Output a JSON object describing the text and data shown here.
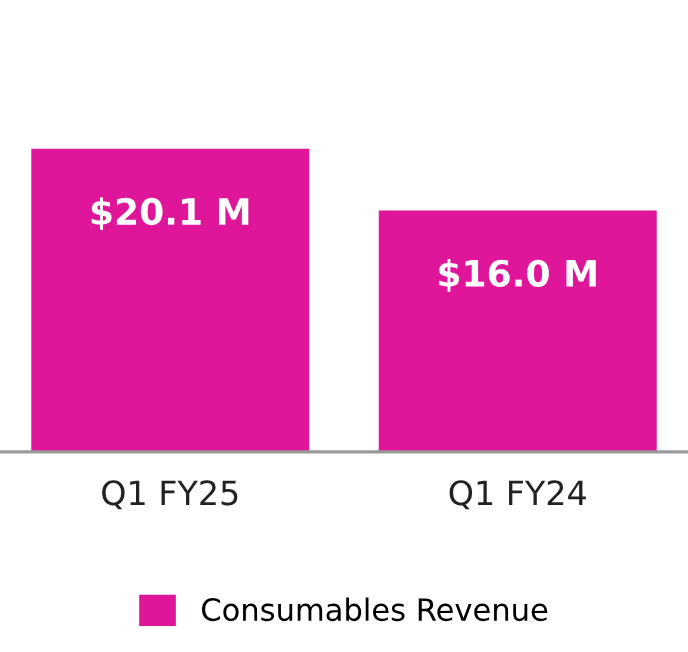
{
  "chart_data": {
    "type": "bar",
    "categories": [
      "Q1 FY25",
      "Q1 FY24"
    ],
    "series": [
      {
        "name": "Consumables Revenue",
        "color": "#e0169a",
        "values": [
          20.1,
          16.0
        ],
        "value_labels": [
          "$20.1 M",
          "$16.0 M"
        ]
      }
    ],
    "legend": "bottom",
    "grid": false
  }
}
